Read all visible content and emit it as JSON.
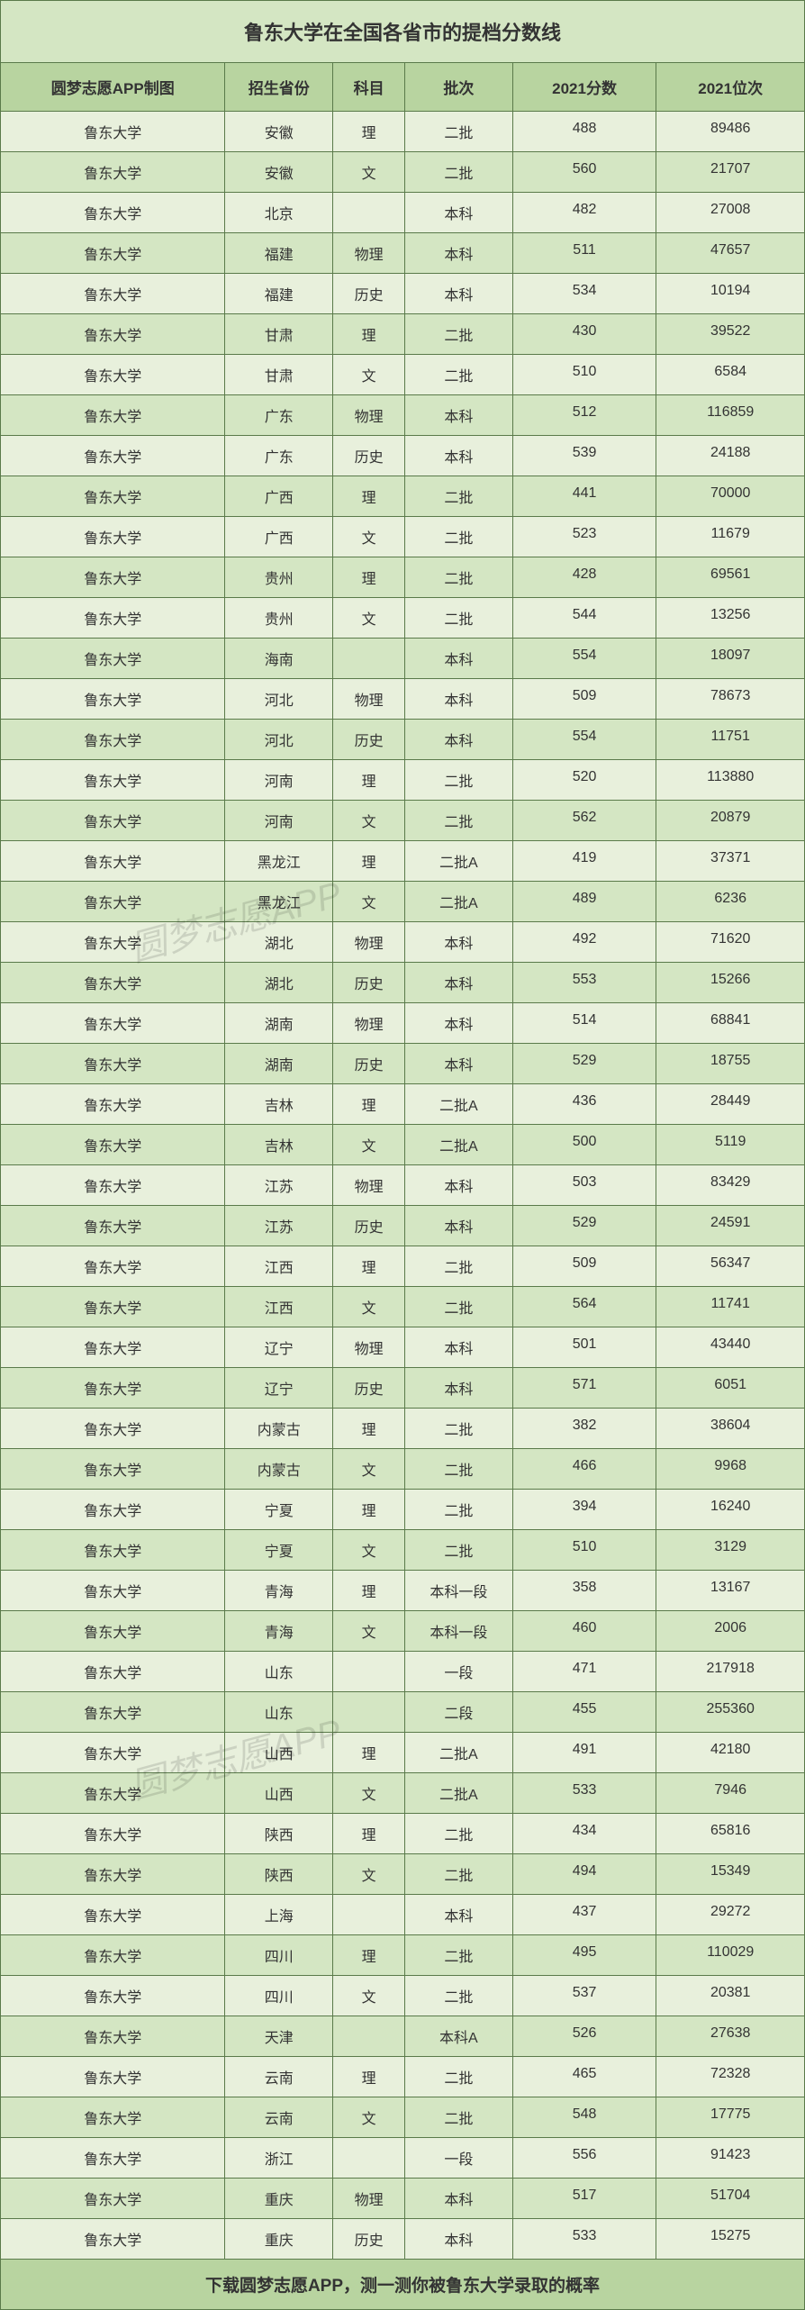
{
  "title": "鲁东大学在全国各省市的提档分数线",
  "footer": "下载圆梦志愿APP，测一测你被鲁东大学录取的概率",
  "watermark_text": "圆梦志愿APP",
  "colors": {
    "title_bg": "#d4e6c3",
    "header_bg": "#b8d4a0",
    "row_odd_bg": "#e8f0dc",
    "row_even_bg": "#d4e6c3",
    "footer_bg": "#b8d4a0",
    "border": "#5a7a4a",
    "text": "#333333"
  },
  "columns": [
    "圆梦志愿APP制图",
    "招生省份",
    "科目",
    "批次",
    "2021分数",
    "2021位次"
  ],
  "rows": [
    [
      "鲁东大学",
      "安徽",
      "理",
      "二批",
      "488",
      "89486"
    ],
    [
      "鲁东大学",
      "安徽",
      "文",
      "二批",
      "560",
      "21707"
    ],
    [
      "鲁东大学",
      "北京",
      "",
      "本科",
      "482",
      "27008"
    ],
    [
      "鲁东大学",
      "福建",
      "物理",
      "本科",
      "511",
      "47657"
    ],
    [
      "鲁东大学",
      "福建",
      "历史",
      "本科",
      "534",
      "10194"
    ],
    [
      "鲁东大学",
      "甘肃",
      "理",
      "二批",
      "430",
      "39522"
    ],
    [
      "鲁东大学",
      "甘肃",
      "文",
      "二批",
      "510",
      "6584"
    ],
    [
      "鲁东大学",
      "广东",
      "物理",
      "本科",
      "512",
      "116859"
    ],
    [
      "鲁东大学",
      "广东",
      "历史",
      "本科",
      "539",
      "24188"
    ],
    [
      "鲁东大学",
      "广西",
      "理",
      "二批",
      "441",
      "70000"
    ],
    [
      "鲁东大学",
      "广西",
      "文",
      "二批",
      "523",
      "11679"
    ],
    [
      "鲁东大学",
      "贵州",
      "理",
      "二批",
      "428",
      "69561"
    ],
    [
      "鲁东大学",
      "贵州",
      "文",
      "二批",
      "544",
      "13256"
    ],
    [
      "鲁东大学",
      "海南",
      "",
      "本科",
      "554",
      "18097"
    ],
    [
      "鲁东大学",
      "河北",
      "物理",
      "本科",
      "509",
      "78673"
    ],
    [
      "鲁东大学",
      "河北",
      "历史",
      "本科",
      "554",
      "11751"
    ],
    [
      "鲁东大学",
      "河南",
      "理",
      "二批",
      "520",
      "113880"
    ],
    [
      "鲁东大学",
      "河南",
      "文",
      "二批",
      "562",
      "20879"
    ],
    [
      "鲁东大学",
      "黑龙江",
      "理",
      "二批A",
      "419",
      "37371"
    ],
    [
      "鲁东大学",
      "黑龙江",
      "文",
      "二批A",
      "489",
      "6236"
    ],
    [
      "鲁东大学",
      "湖北",
      "物理",
      "本科",
      "492",
      "71620"
    ],
    [
      "鲁东大学",
      "湖北",
      "历史",
      "本科",
      "553",
      "15266"
    ],
    [
      "鲁东大学",
      "湖南",
      "物理",
      "本科",
      "514",
      "68841"
    ],
    [
      "鲁东大学",
      "湖南",
      "历史",
      "本科",
      "529",
      "18755"
    ],
    [
      "鲁东大学",
      "吉林",
      "理",
      "二批A",
      "436",
      "28449"
    ],
    [
      "鲁东大学",
      "吉林",
      "文",
      "二批A",
      "500",
      "5119"
    ],
    [
      "鲁东大学",
      "江苏",
      "物理",
      "本科",
      "503",
      "83429"
    ],
    [
      "鲁东大学",
      "江苏",
      "历史",
      "本科",
      "529",
      "24591"
    ],
    [
      "鲁东大学",
      "江西",
      "理",
      "二批",
      "509",
      "56347"
    ],
    [
      "鲁东大学",
      "江西",
      "文",
      "二批",
      "564",
      "11741"
    ],
    [
      "鲁东大学",
      "辽宁",
      "物理",
      "本科",
      "501",
      "43440"
    ],
    [
      "鲁东大学",
      "辽宁",
      "历史",
      "本科",
      "571",
      "6051"
    ],
    [
      "鲁东大学",
      "内蒙古",
      "理",
      "二批",
      "382",
      "38604"
    ],
    [
      "鲁东大学",
      "内蒙古",
      "文",
      "二批",
      "466",
      "9968"
    ],
    [
      "鲁东大学",
      "宁夏",
      "理",
      "二批",
      "394",
      "16240"
    ],
    [
      "鲁东大学",
      "宁夏",
      "文",
      "二批",
      "510",
      "3129"
    ],
    [
      "鲁东大学",
      "青海",
      "理",
      "本科一段",
      "358",
      "13167"
    ],
    [
      "鲁东大学",
      "青海",
      "文",
      "本科一段",
      "460",
      "2006"
    ],
    [
      "鲁东大学",
      "山东",
      "",
      "一段",
      "471",
      "217918"
    ],
    [
      "鲁东大学",
      "山东",
      "",
      "二段",
      "455",
      "255360"
    ],
    [
      "鲁东大学",
      "山西",
      "理",
      "二批A",
      "491",
      "42180"
    ],
    [
      "鲁东大学",
      "山西",
      "文",
      "二批A",
      "533",
      "7946"
    ],
    [
      "鲁东大学",
      "陕西",
      "理",
      "二批",
      "434",
      "65816"
    ],
    [
      "鲁东大学",
      "陕西",
      "文",
      "二批",
      "494",
      "15349"
    ],
    [
      "鲁东大学",
      "上海",
      "",
      "本科",
      "437",
      "29272"
    ],
    [
      "鲁东大学",
      "四川",
      "理",
      "二批",
      "495",
      "110029"
    ],
    [
      "鲁东大学",
      "四川",
      "文",
      "二批",
      "537",
      "20381"
    ],
    [
      "鲁东大学",
      "天津",
      "",
      "本科A",
      "526",
      "27638"
    ],
    [
      "鲁东大学",
      "云南",
      "理",
      "二批",
      "465",
      "72328"
    ],
    [
      "鲁东大学",
      "云南",
      "文",
      "二批",
      "548",
      "17775"
    ],
    [
      "鲁东大学",
      "浙江",
      "",
      "一段",
      "556",
      "91423"
    ],
    [
      "鲁东大学",
      "重庆",
      "物理",
      "本科",
      "517",
      "51704"
    ],
    [
      "鲁东大学",
      "重庆",
      "历史",
      "本科",
      "533",
      "15275"
    ]
  ]
}
